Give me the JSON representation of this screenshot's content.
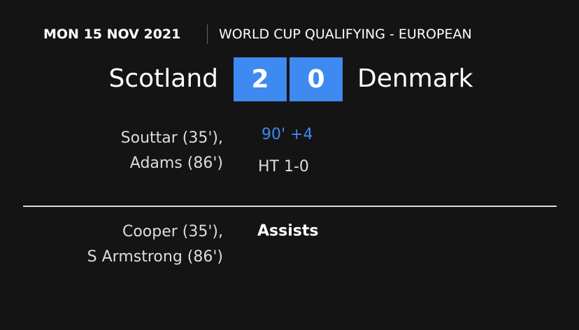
{
  "header": {
    "date": "MON 15 NOV 2021",
    "competition": "WORLD CUP QUALIFYING - EUROPEAN"
  },
  "match": {
    "home_team": "Scotland",
    "away_team": "Denmark",
    "home_score": "2",
    "away_score": "0",
    "time": "90' +4",
    "half_time": "HT 1-0",
    "score_color": "#3e8af0"
  },
  "scorers": {
    "home": [
      "Souttar (35'),",
      "Adams (86')"
    ]
  },
  "assists": {
    "label": "Assists",
    "home": [
      "Cooper (35'),",
      "S Armstrong (86')"
    ]
  }
}
